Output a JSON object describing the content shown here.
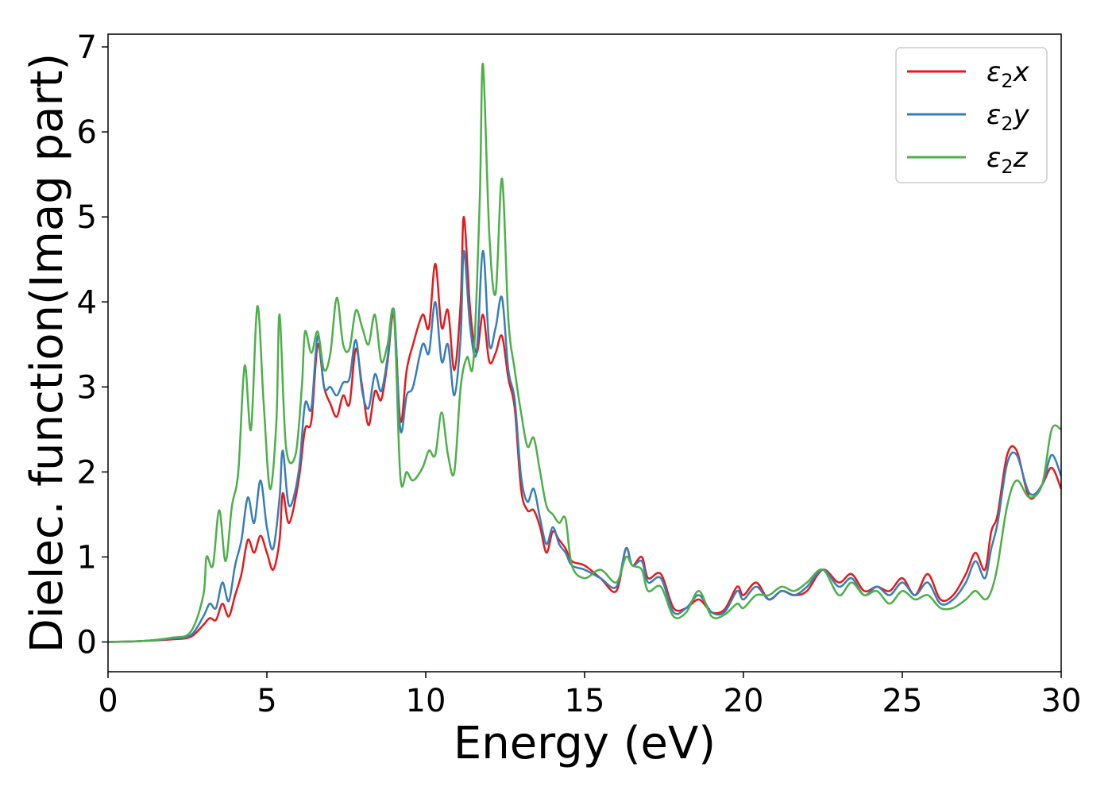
{
  "chart_data": {
    "type": "line",
    "title": "",
    "xlabel": "Energy (eV)",
    "ylabel": "Dielec. function(Imag part)",
    "xlim": [
      0,
      30
    ],
    "ylim": [
      -0.35,
      7.15
    ],
    "xticks": [
      0,
      5,
      10,
      15,
      20,
      25,
      30
    ],
    "yticks": [
      0,
      1,
      2,
      3,
      4,
      5,
      6,
      7
    ],
    "grid": false,
    "legend_position": "top-right",
    "series": [
      {
        "name": "ε2x",
        "legend_base": "ε",
        "legend_sub": "2",
        "legend_suffix": "x",
        "color": "#e41a1c",
        "points": [
          [
            0,
            0
          ],
          [
            1,
            0.01
          ],
          [
            2,
            0.03
          ],
          [
            2.6,
            0.06
          ],
          [
            3,
            0.2
          ],
          [
            3.2,
            0.28
          ],
          [
            3.4,
            0.26
          ],
          [
            3.6,
            0.45
          ],
          [
            3.8,
            0.3
          ],
          [
            4,
            0.55
          ],
          [
            4.2,
            0.8
          ],
          [
            4.4,
            1.2
          ],
          [
            4.6,
            1.05
          ],
          [
            4.8,
            1.25
          ],
          [
            5,
            1.05
          ],
          [
            5.2,
            0.85
          ],
          [
            5.4,
            1.2
          ],
          [
            5.5,
            1.75
          ],
          [
            5.7,
            1.4
          ],
          [
            6,
            1.9
          ],
          [
            6.2,
            2.5
          ],
          [
            6.4,
            2.6
          ],
          [
            6.6,
            3.5
          ],
          [
            6.8,
            3.0
          ],
          [
            7,
            2.8
          ],
          [
            7.2,
            2.65
          ],
          [
            7.4,
            2.9
          ],
          [
            7.6,
            2.8
          ],
          [
            7.8,
            3.45
          ],
          [
            8,
            3.0
          ],
          [
            8.2,
            2.55
          ],
          [
            8.4,
            2.95
          ],
          [
            8.6,
            2.85
          ],
          [
            8.8,
            3.3
          ],
          [
            9,
            3.85
          ],
          [
            9.2,
            2.6
          ],
          [
            9.4,
            3.2
          ],
          [
            9.6,
            3.5
          ],
          [
            9.9,
            3.85
          ],
          [
            10.1,
            3.7
          ],
          [
            10.3,
            4.45
          ],
          [
            10.5,
            3.7
          ],
          [
            10.7,
            3.9
          ],
          [
            10.9,
            3.2
          ],
          [
            11.1,
            4.0
          ],
          [
            11.2,
            5.0
          ],
          [
            11.4,
            3.9
          ],
          [
            11.6,
            3.4
          ],
          [
            11.8,
            3.85
          ],
          [
            12,
            3.3
          ],
          [
            12.2,
            3.4
          ],
          [
            12.4,
            3.6
          ],
          [
            12.6,
            3.1
          ],
          [
            12.8,
            2.75
          ],
          [
            13,
            1.8
          ],
          [
            13.2,
            1.55
          ],
          [
            13.4,
            1.55
          ],
          [
            13.6,
            1.35
          ],
          [
            13.8,
            1.05
          ],
          [
            14,
            1.3
          ],
          [
            14.2,
            1.2
          ],
          [
            14.4,
            1.1
          ],
          [
            14.6,
            0.95
          ],
          [
            15,
            0.9
          ],
          [
            15.5,
            0.75
          ],
          [
            16,
            0.6
          ],
          [
            16.3,
            1.1
          ],
          [
            16.5,
            0.9
          ],
          [
            16.8,
            1.0
          ],
          [
            17,
            0.75
          ],
          [
            17.4,
            0.8
          ],
          [
            17.8,
            0.4
          ],
          [
            18.2,
            0.4
          ],
          [
            18.6,
            0.5
          ],
          [
            19,
            0.35
          ],
          [
            19.4,
            0.38
          ],
          [
            19.8,
            0.65
          ],
          [
            20,
            0.55
          ],
          [
            20.4,
            0.7
          ],
          [
            20.8,
            0.5
          ],
          [
            21.2,
            0.6
          ],
          [
            21.6,
            0.55
          ],
          [
            22,
            0.6
          ],
          [
            22.5,
            0.85
          ],
          [
            23,
            0.7
          ],
          [
            23.4,
            0.8
          ],
          [
            23.8,
            0.6
          ],
          [
            24.2,
            0.65
          ],
          [
            24.6,
            0.6
          ],
          [
            25,
            0.75
          ],
          [
            25.4,
            0.55
          ],
          [
            25.8,
            0.8
          ],
          [
            26.2,
            0.5
          ],
          [
            26.6,
            0.55
          ],
          [
            27,
            0.8
          ],
          [
            27.3,
            1.05
          ],
          [
            27.6,
            0.85
          ],
          [
            27.8,
            1.3
          ],
          [
            28,
            1.5
          ],
          [
            28.3,
            2.2
          ],
          [
            28.6,
            2.25
          ],
          [
            29,
            1.7
          ],
          [
            29.4,
            1.85
          ],
          [
            29.7,
            2.05
          ],
          [
            30,
            1.8
          ]
        ]
      },
      {
        "name": "ε2y",
        "legend_base": "ε",
        "legend_sub": "2",
        "legend_suffix": "y",
        "color": "#377eb8",
        "points": [
          [
            0,
            0
          ],
          [
            1,
            0.01
          ],
          [
            2,
            0.04
          ],
          [
            2.6,
            0.08
          ],
          [
            3,
            0.3
          ],
          [
            3.2,
            0.45
          ],
          [
            3.4,
            0.4
          ],
          [
            3.6,
            0.7
          ],
          [
            3.8,
            0.48
          ],
          [
            4,
            0.9
          ],
          [
            4.2,
            1.2
          ],
          [
            4.4,
            1.7
          ],
          [
            4.6,
            1.4
          ],
          [
            4.8,
            1.9
          ],
          [
            5,
            1.35
          ],
          [
            5.2,
            1.1
          ],
          [
            5.4,
            1.7
          ],
          [
            5.5,
            2.25
          ],
          [
            5.7,
            1.6
          ],
          [
            6,
            2.0
          ],
          [
            6.2,
            2.8
          ],
          [
            6.4,
            2.75
          ],
          [
            6.6,
            3.6
          ],
          [
            6.8,
            3.0
          ],
          [
            7,
            3.0
          ],
          [
            7.2,
            2.9
          ],
          [
            7.4,
            3.05
          ],
          [
            7.6,
            3.1
          ],
          [
            7.8,
            3.55
          ],
          [
            8,
            2.95
          ],
          [
            8.2,
            2.75
          ],
          [
            8.4,
            3.15
          ],
          [
            8.6,
            2.95
          ],
          [
            8.8,
            3.35
          ],
          [
            9,
            3.9
          ],
          [
            9.2,
            2.5
          ],
          [
            9.4,
            2.9
          ],
          [
            9.6,
            3.0
          ],
          [
            9.9,
            3.5
          ],
          [
            10.1,
            3.4
          ],
          [
            10.3,
            4.0
          ],
          [
            10.5,
            3.3
          ],
          [
            10.7,
            3.5
          ],
          [
            10.9,
            2.9
          ],
          [
            11.1,
            3.6
          ],
          [
            11.2,
            4.6
          ],
          [
            11.4,
            3.7
          ],
          [
            11.6,
            3.4
          ],
          [
            11.8,
            4.6
          ],
          [
            12,
            3.5
          ],
          [
            12.2,
            3.7
          ],
          [
            12.4,
            4.05
          ],
          [
            12.6,
            3.2
          ],
          [
            12.8,
            2.85
          ],
          [
            13,
            1.95
          ],
          [
            13.2,
            1.65
          ],
          [
            13.4,
            1.8
          ],
          [
            13.6,
            1.45
          ],
          [
            13.8,
            1.15
          ],
          [
            14,
            1.35
          ],
          [
            14.2,
            1.15
          ],
          [
            14.4,
            1.05
          ],
          [
            14.6,
            0.9
          ],
          [
            15,
            0.85
          ],
          [
            15.5,
            0.75
          ],
          [
            16,
            0.65
          ],
          [
            16.3,
            1.1
          ],
          [
            16.5,
            0.9
          ],
          [
            16.8,
            0.95
          ],
          [
            17,
            0.7
          ],
          [
            17.4,
            0.75
          ],
          [
            17.8,
            0.35
          ],
          [
            18.2,
            0.4
          ],
          [
            18.6,
            0.55
          ],
          [
            19,
            0.35
          ],
          [
            19.4,
            0.35
          ],
          [
            19.8,
            0.6
          ],
          [
            20,
            0.5
          ],
          [
            20.4,
            0.65
          ],
          [
            20.8,
            0.5
          ],
          [
            21.2,
            0.6
          ],
          [
            21.6,
            0.55
          ],
          [
            22,
            0.65
          ],
          [
            22.5,
            0.85
          ],
          [
            23,
            0.65
          ],
          [
            23.4,
            0.75
          ],
          [
            23.8,
            0.55
          ],
          [
            24.2,
            0.65
          ],
          [
            24.6,
            0.55
          ],
          [
            25,
            0.7
          ],
          [
            25.4,
            0.55
          ],
          [
            25.8,
            0.7
          ],
          [
            26.2,
            0.45
          ],
          [
            26.6,
            0.5
          ],
          [
            27,
            0.7
          ],
          [
            27.3,
            0.95
          ],
          [
            27.6,
            0.75
          ],
          [
            27.8,
            1.1
          ],
          [
            28,
            1.4
          ],
          [
            28.3,
            2.1
          ],
          [
            28.6,
            2.2
          ],
          [
            29,
            1.75
          ],
          [
            29.4,
            1.85
          ],
          [
            29.7,
            2.2
          ],
          [
            30,
            1.95
          ]
        ]
      },
      {
        "name": "ε2z",
        "legend_base": "ε",
        "legend_sub": "2",
        "legend_suffix": "z",
        "color": "#4daf4a",
        "points": [
          [
            0,
            0
          ],
          [
            1,
            0.01
          ],
          [
            2,
            0.05
          ],
          [
            2.6,
            0.12
          ],
          [
            3,
            0.55
          ],
          [
            3.1,
            1.0
          ],
          [
            3.3,
            0.9
          ],
          [
            3.5,
            1.55
          ],
          [
            3.7,
            0.95
          ],
          [
            3.9,
            1.6
          ],
          [
            4.1,
            2.0
          ],
          [
            4.3,
            3.25
          ],
          [
            4.5,
            2.5
          ],
          [
            4.7,
            3.95
          ],
          [
            4.9,
            2.8
          ],
          [
            5.1,
            1.8
          ],
          [
            5.3,
            2.6
          ],
          [
            5.4,
            3.85
          ],
          [
            5.6,
            2.3
          ],
          [
            5.9,
            2.2
          ],
          [
            6.1,
            3.0
          ],
          [
            6.2,
            3.65
          ],
          [
            6.4,
            3.4
          ],
          [
            6.6,
            3.65
          ],
          [
            6.8,
            3.2
          ],
          [
            7,
            3.4
          ],
          [
            7.2,
            4.05
          ],
          [
            7.4,
            3.5
          ],
          [
            7.6,
            3.45
          ],
          [
            7.8,
            3.9
          ],
          [
            8,
            3.7
          ],
          [
            8.2,
            3.5
          ],
          [
            8.4,
            3.85
          ],
          [
            8.6,
            3.3
          ],
          [
            8.8,
            3.5
          ],
          [
            9,
            3.85
          ],
          [
            9.2,
            1.95
          ],
          [
            9.4,
            2.0
          ],
          [
            9.6,
            1.9
          ],
          [
            9.9,
            2.05
          ],
          [
            10.1,
            2.25
          ],
          [
            10.3,
            2.2
          ],
          [
            10.5,
            2.7
          ],
          [
            10.7,
            2.2
          ],
          [
            10.9,
            2.0
          ],
          [
            11.1,
            3.0
          ],
          [
            11.3,
            3.35
          ],
          [
            11.5,
            3.3
          ],
          [
            11.7,
            5.2
          ],
          [
            11.8,
            6.8
          ],
          [
            12,
            4.8
          ],
          [
            12.2,
            4.1
          ],
          [
            12.4,
            5.45
          ],
          [
            12.6,
            3.8
          ],
          [
            12.8,
            3.2
          ],
          [
            13,
            2.7
          ],
          [
            13.2,
            2.3
          ],
          [
            13.4,
            2.4
          ],
          [
            13.6,
            2.0
          ],
          [
            13.8,
            1.6
          ],
          [
            14,
            1.5
          ],
          [
            14.2,
            1.4
          ],
          [
            14.4,
            1.45
          ],
          [
            14.6,
            0.9
          ],
          [
            15,
            0.75
          ],
          [
            15.5,
            0.85
          ],
          [
            16,
            0.7
          ],
          [
            16.3,
            1.0
          ],
          [
            16.5,
            0.9
          ],
          [
            16.8,
            0.85
          ],
          [
            17,
            0.6
          ],
          [
            17.4,
            0.65
          ],
          [
            17.8,
            0.3
          ],
          [
            18.2,
            0.35
          ],
          [
            18.6,
            0.6
          ],
          [
            19,
            0.3
          ],
          [
            19.4,
            0.32
          ],
          [
            19.8,
            0.45
          ],
          [
            20,
            0.4
          ],
          [
            20.4,
            0.55
          ],
          [
            20.8,
            0.55
          ],
          [
            21.2,
            0.65
          ],
          [
            21.6,
            0.6
          ],
          [
            22,
            0.7
          ],
          [
            22.5,
            0.85
          ],
          [
            23,
            0.55
          ],
          [
            23.4,
            0.7
          ],
          [
            23.8,
            0.55
          ],
          [
            24.2,
            0.6
          ],
          [
            24.6,
            0.45
          ],
          [
            25,
            0.6
          ],
          [
            25.4,
            0.5
          ],
          [
            25.8,
            0.55
          ],
          [
            26.2,
            0.4
          ],
          [
            26.6,
            0.4
          ],
          [
            27,
            0.5
          ],
          [
            27.3,
            0.6
          ],
          [
            27.6,
            0.5
          ],
          [
            27.8,
            0.6
          ],
          [
            28,
            0.9
          ],
          [
            28.3,
            1.6
          ],
          [
            28.6,
            1.9
          ],
          [
            29,
            1.7
          ],
          [
            29.4,
            1.85
          ],
          [
            29.7,
            2.5
          ],
          [
            30,
            2.5
          ]
        ]
      }
    ]
  }
}
